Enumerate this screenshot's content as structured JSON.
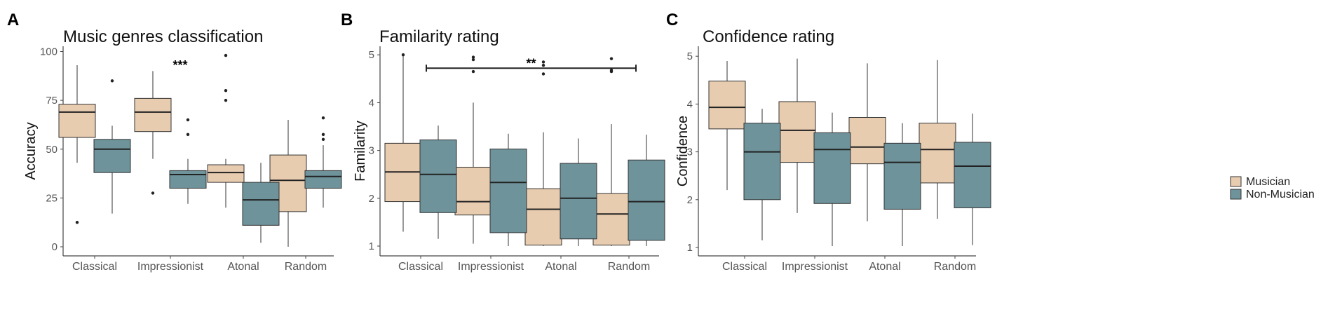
{
  "colors": {
    "musician": "#E8CCB0",
    "non_musician": "#6E939B",
    "line": "#333333",
    "axis": "#444444"
  },
  "legend": {
    "items": [
      {
        "label": "Musician",
        "color": "#E8CCB0"
      },
      {
        "label": "Non-Musician",
        "color": "#6E939B"
      }
    ]
  },
  "chart_data": [
    {
      "panel": "A",
      "type": "box",
      "title": "Music genres classification",
      "ylabel": "Accuracy",
      "ylim": [
        0,
        100
      ],
      "yticks": [
        0,
        25,
        50,
        75,
        100
      ],
      "categories": [
        "Classical",
        "Impressionist",
        "Atonal",
        "Random"
      ],
      "series": [
        {
          "name": "Musician",
          "boxes": [
            {
              "q1": 56,
              "median": 69,
              "q3": 73,
              "low": 43,
              "high": 93,
              "outliers": [
                12.5
              ]
            },
            {
              "q1": 59,
              "median": 69,
              "q3": 76,
              "low": 45,
              "high": 90,
              "outliers": [
                27.5
              ]
            },
            {
              "q1": 33,
              "median": 38,
              "q3": 42,
              "low": 20,
              "high": 45,
              "outliers": [
                75,
                80,
                98
              ]
            },
            {
              "q1": 18,
              "median": 34,
              "q3": 47,
              "low": 0,
              "high": 65,
              "outliers": []
            }
          ]
        },
        {
          "name": "Non-Musician",
          "boxes": [
            {
              "q1": 38,
              "median": 50,
              "q3": 55,
              "low": 17,
              "high": 62,
              "outliers": [
                85
              ]
            },
            {
              "q1": 30,
              "median": 37,
              "q3": 39,
              "low": 22,
              "high": 45,
              "outliers": [
                57.5,
                65
              ]
            },
            {
              "q1": 11,
              "median": 24,
              "q3": 33,
              "low": 2,
              "high": 43,
              "outliers": []
            },
            {
              "q1": 30,
              "median": 36,
              "q3": 39,
              "low": 20,
              "high": 52,
              "outliers": [
                55,
                57.5,
                66
              ]
            }
          ]
        }
      ],
      "annotations": [
        {
          "text": "***",
          "category": "Impressionist",
          "y": 93
        }
      ]
    },
    {
      "panel": "B",
      "type": "box",
      "title": "Familarity rating",
      "ylabel": "Familarity",
      "ylim": [
        0.85,
        5.1
      ],
      "yticks": [
        1,
        2,
        3,
        4,
        5
      ],
      "categories": [
        "Classical",
        "Impressionist",
        "Atonal",
        "Random"
      ],
      "series": [
        {
          "name": "Musician",
          "boxes": [
            {
              "q1": 1.93,
              "median": 2.55,
              "q3": 3.15,
              "low": 1.3,
              "high": 5.0,
              "outliers": [
                5.0
              ]
            },
            {
              "q1": 1.65,
              "median": 1.93,
              "q3": 2.65,
              "low": 1.05,
              "high": 4.0,
              "outliers": [
                4.65,
                4.9,
                4.95
              ]
            },
            {
              "q1": 1.02,
              "median": 1.77,
              "q3": 2.2,
              "low": 1.0,
              "high": 3.38,
              "outliers": [
                4.6,
                4.78,
                4.85
              ]
            },
            {
              "q1": 1.02,
              "median": 1.67,
              "q3": 2.1,
              "low": 1.0,
              "high": 3.55,
              "outliers": [
                4.65,
                4.68,
                4.92
              ]
            }
          ]
        },
        {
          "name": "Non-Musician",
          "boxes": [
            {
              "q1": 1.7,
              "median": 2.5,
              "q3": 3.22,
              "low": 1.15,
              "high": 3.52,
              "outliers": []
            },
            {
              "q1": 1.28,
              "median": 2.33,
              "q3": 3.03,
              "low": 1.0,
              "high": 3.35,
              "outliers": []
            },
            {
              "q1": 1.15,
              "median": 2.0,
              "q3": 2.73,
              "low": 1.0,
              "high": 3.25,
              "outliers": []
            },
            {
              "q1": 1.12,
              "median": 1.93,
              "q3": 2.8,
              "low": 1.0,
              "high": 3.33,
              "outliers": []
            }
          ]
        }
      ],
      "bracket": {
        "text": "**",
        "from": "Classical",
        "to": "Random",
        "y": 4.72
      }
    },
    {
      "panel": "C",
      "type": "box",
      "title": "Confidence rating",
      "ylabel": "Confidence",
      "ylim": [
        0.85,
        5.1
      ],
      "yticks": [
        1,
        2,
        3,
        4,
        5
      ],
      "categories": [
        "Classical",
        "Impressionist",
        "Atonal",
        "Random"
      ],
      "series": [
        {
          "name": "Musician",
          "boxes": [
            {
              "q1": 3.48,
              "median": 3.93,
              "q3": 4.48,
              "low": 2.2,
              "high": 4.9,
              "outliers": []
            },
            {
              "q1": 2.78,
              "median": 3.45,
              "q3": 4.05,
              "low": 1.72,
              "high": 4.95,
              "outliers": []
            },
            {
              "q1": 2.75,
              "median": 3.1,
              "q3": 3.72,
              "low": 1.55,
              "high": 4.85,
              "outliers": []
            },
            {
              "q1": 2.35,
              "median": 3.05,
              "q3": 3.6,
              "low": 1.6,
              "high": 4.92,
              "outliers": []
            }
          ]
        },
        {
          "name": "Non-Musician",
          "boxes": [
            {
              "q1": 2.0,
              "median": 3.0,
              "q3": 3.6,
              "low": 1.15,
              "high": 3.9,
              "outliers": []
            },
            {
              "q1": 1.92,
              "median": 3.05,
              "q3": 3.4,
              "low": 1.03,
              "high": 3.82,
              "outliers": []
            },
            {
              "q1": 1.8,
              "median": 2.78,
              "q3": 3.18,
              "low": 1.03,
              "high": 3.6,
              "outliers": []
            },
            {
              "q1": 1.83,
              "median": 2.7,
              "q3": 3.2,
              "low": 1.05,
              "high": 3.8,
              "outliers": []
            }
          ]
        }
      ]
    }
  ]
}
